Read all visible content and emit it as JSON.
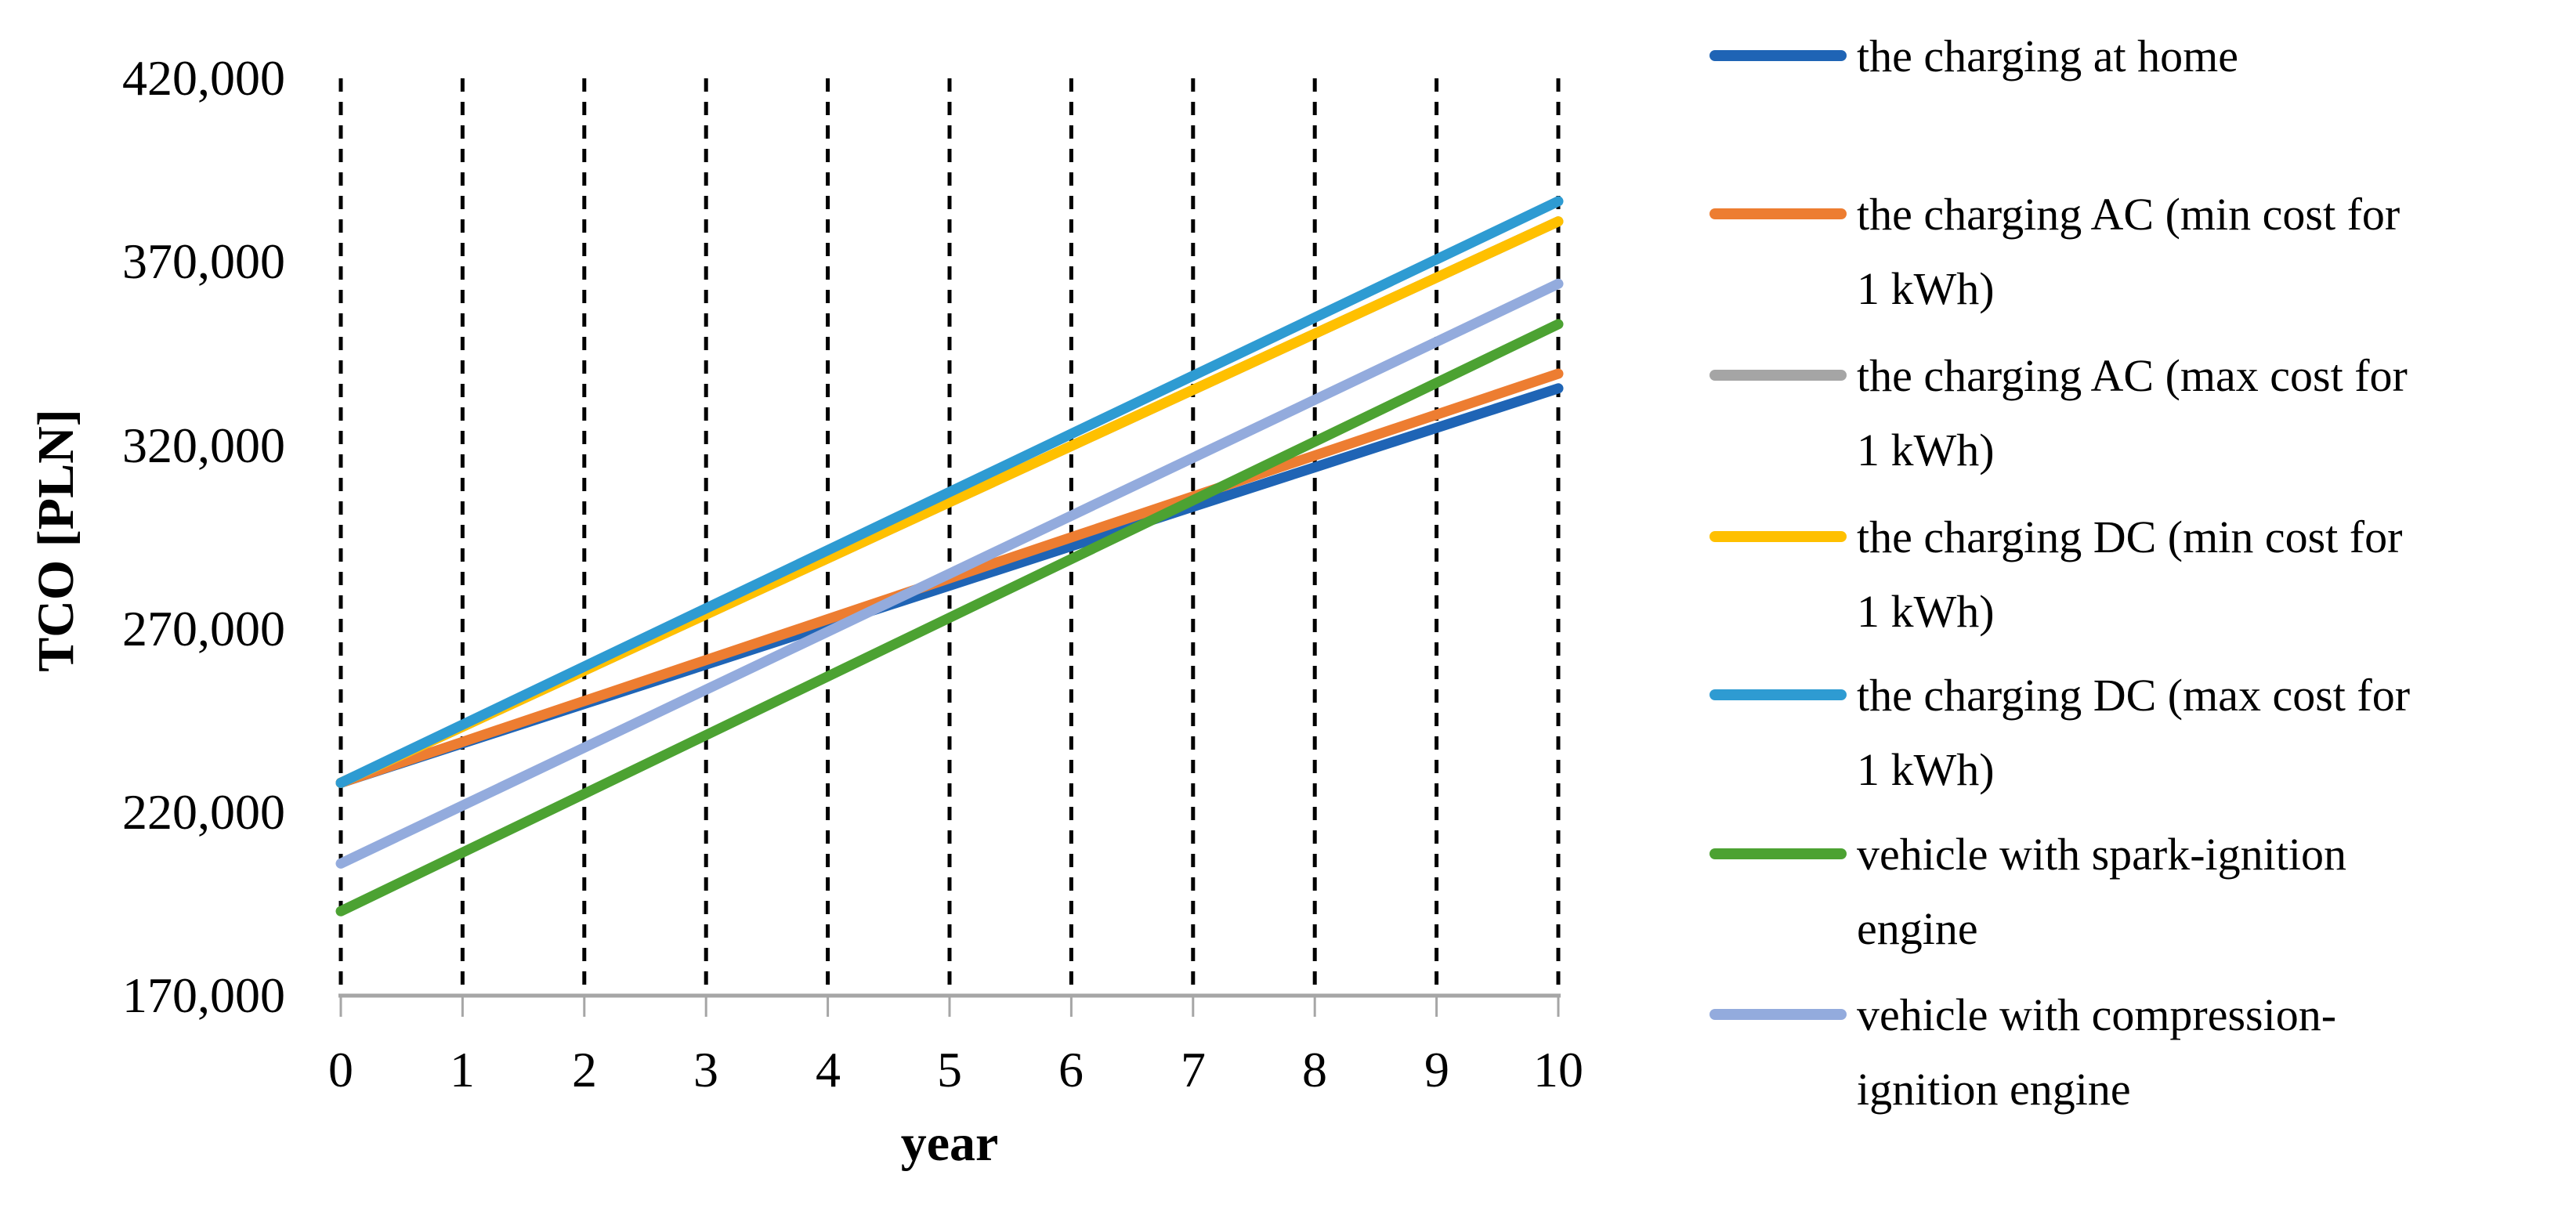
{
  "chart_data": {
    "type": "line",
    "title": "",
    "xlabel": "year",
    "ylabel": "TCO [PLN]",
    "xlim": [
      0,
      10
    ],
    "ylim": [
      170000,
      420000
    ],
    "x": [
      0,
      1,
      2,
      3,
      4,
      5,
      6,
      7,
      8,
      9,
      10
    ],
    "x_tick_labels": [
      "0",
      "1",
      "2",
      "3",
      "4",
      "5",
      "6",
      "7",
      "8",
      "9",
      "10"
    ],
    "y_ticks": [
      420000,
      370000,
      320000,
      270000,
      220000,
      170000
    ],
    "y_tick_labels": [
      "420,000",
      "370,000",
      "320,000",
      "270,000",
      "220,000",
      "170,000"
    ],
    "grid": "vertical-dashed-black",
    "legend_position": "right",
    "gridline_color": "#000000",
    "axis_line_color": "#A6A6A6",
    "series": [
      {
        "key": "charging-at-home",
        "name": "the charging at home",
        "legend_lines": [
          "the charging at home",
          ""
        ],
        "color": "#1F64B5",
        "values": [
          228000,
          238750,
          249500,
          260250,
          271000,
          281750,
          292500,
          303250,
          314000,
          324750,
          335500
        ]
      },
      {
        "key": "charging-ac-min",
        "name": "the charging AC (min cost for 1 kWh)",
        "legend_lines": [
          "the charging AC (min cost for",
          "1 kWh)"
        ],
        "color": "#ED7D31",
        "values": [
          228000,
          239150,
          250300,
          261450,
          272600,
          283750,
          294900,
          306050,
          317200,
          328350,
          339500
        ]
      },
      {
        "key": "charging-ac-max",
        "name": "the charging AC (max cost for 1 kWh)",
        "legend_lines": [
          "the charging AC (max cost for",
          "1 kWh)"
        ],
        "color": "#A5A5A5",
        "values": [
          228000,
          243300,
          258600,
          273900,
          289200,
          304500,
          319800,
          335100,
          350400,
          365700,
          381000
        ]
      },
      {
        "key": "charging-dc-min",
        "name": "the charging DC (min cost for 1 kWh)",
        "legend_lines": [
          "the charging DC (min cost for",
          "1 kWh)"
        ],
        "color": "#FFC000",
        "values": [
          228000,
          243300,
          258600,
          273900,
          289200,
          304500,
          319800,
          335100,
          350400,
          365700,
          381000
        ]
      },
      {
        "key": "charging-dc-max",
        "name": "the charging DC (max cost for 1 kWh)",
        "legend_lines": [
          "the charging DC (max cost for",
          "1 kWh)"
        ],
        "color": "#2E9BD2",
        "values": [
          228000,
          243850,
          259700,
          275550,
          291400,
          307250,
          323100,
          338950,
          354800,
          370650,
          386500
        ]
      },
      {
        "key": "spark-ignition",
        "name": "vehicle with spark-ignition engine",
        "legend_lines": [
          "vehicle with spark-ignition",
          "engine"
        ],
        "color": "#4CA232",
        "values": [
          193000,
          209000,
          225000,
          241000,
          257000,
          273000,
          289000,
          305000,
          321000,
          337000,
          353000
        ]
      },
      {
        "key": "compression-ignition",
        "name": "vehicle with compression-ignition engine",
        "legend_lines": [
          "vehicle with compression-",
          "ignition engine"
        ],
        "color": "#93ABDD",
        "values": [
          206000,
          221800,
          237600,
          253400,
          269200,
          285000,
          300800,
          316600,
          332400,
          348200,
          364000
        ]
      }
    ]
  }
}
